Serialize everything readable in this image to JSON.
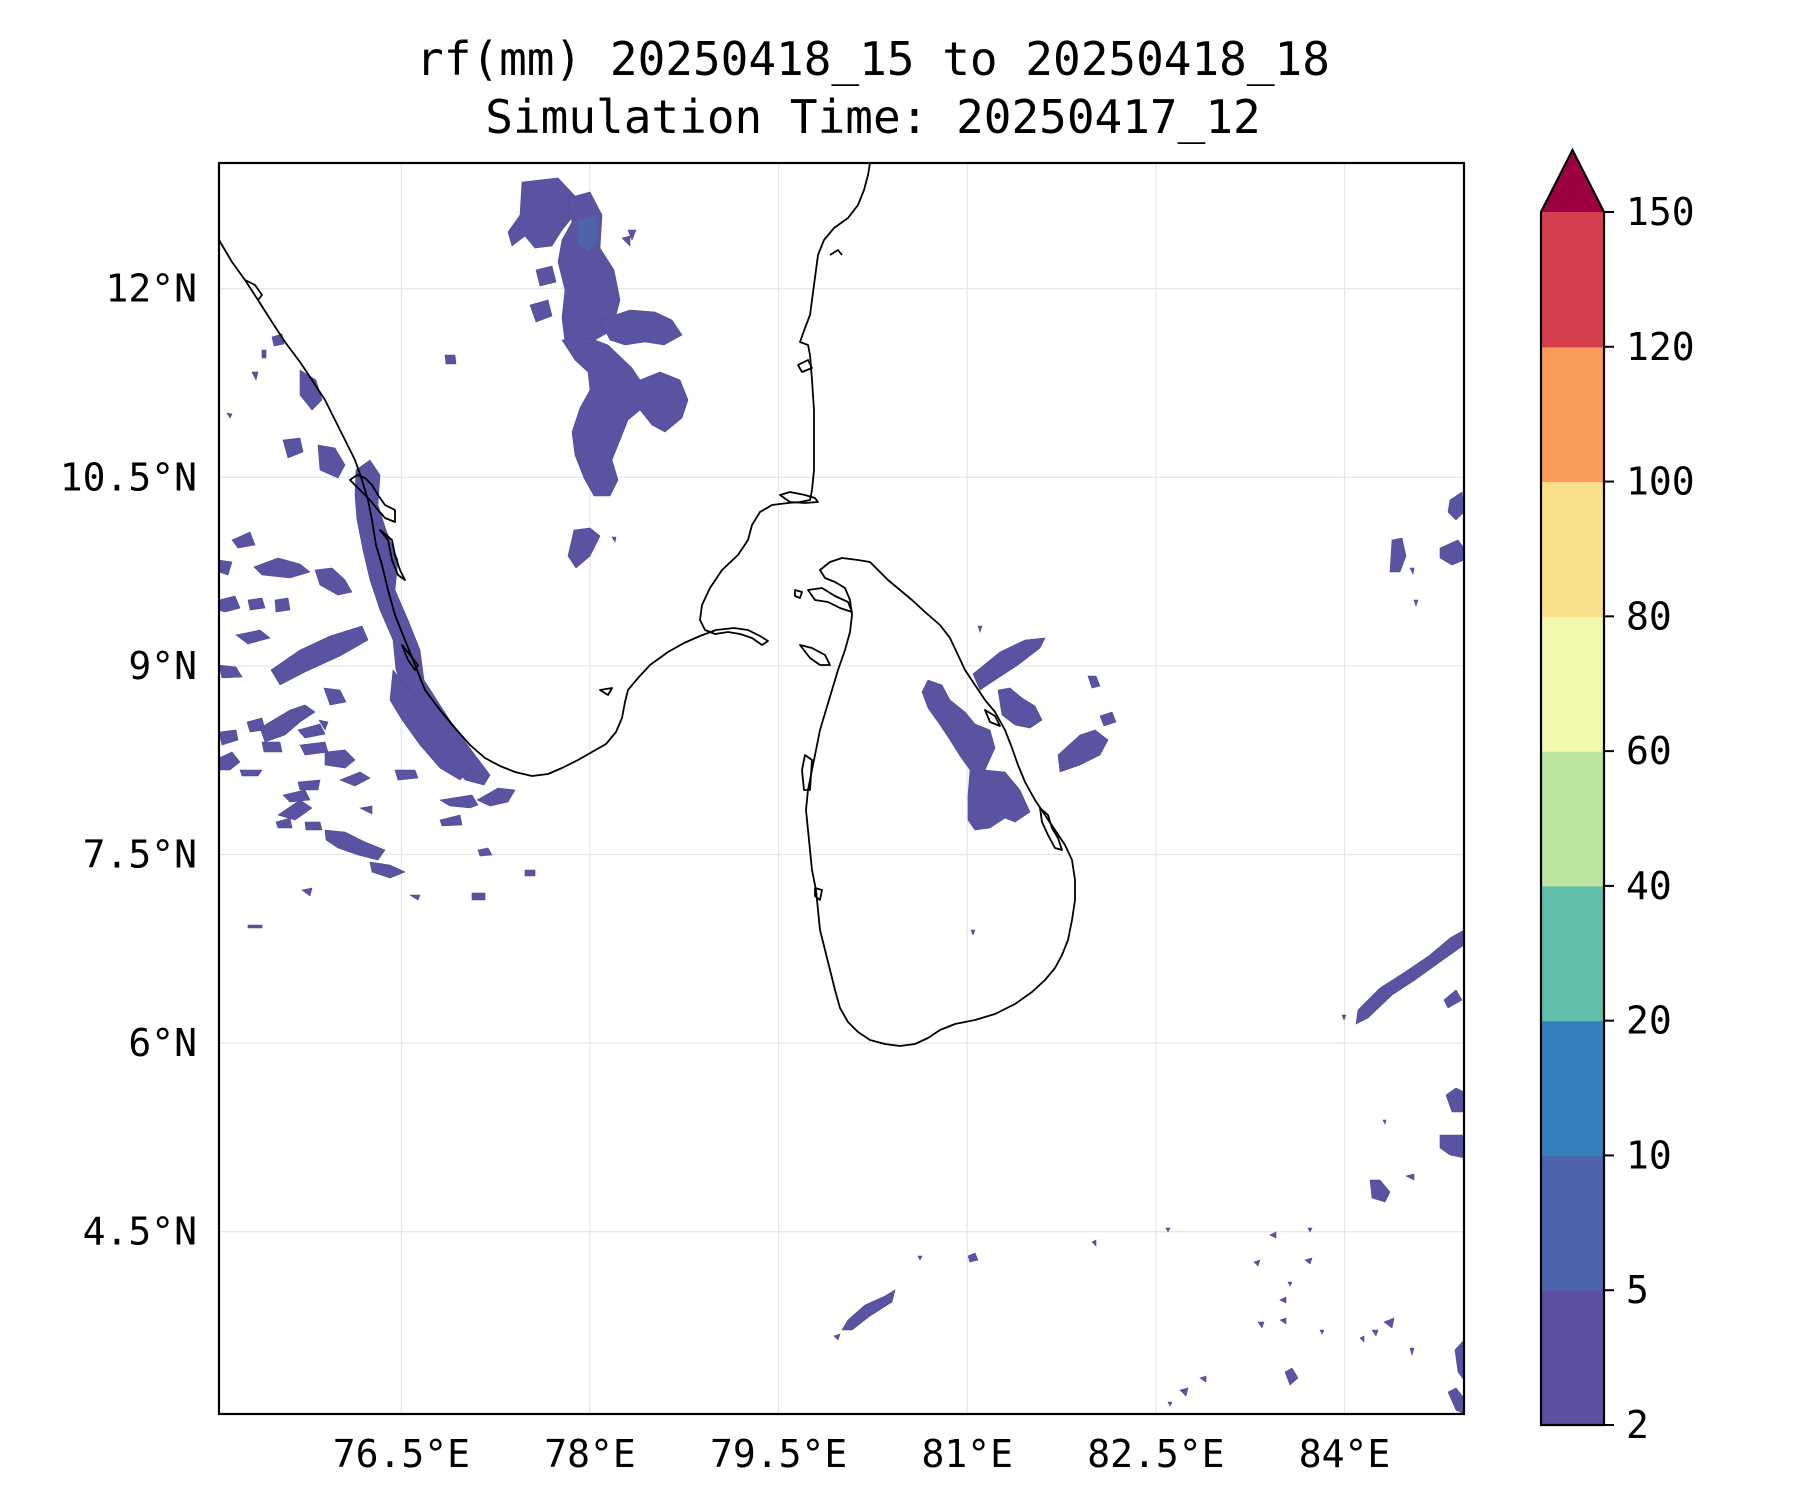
{
  "title": {
    "line1": "rf(mm) 20250418_15 to 20250418_18",
    "line2": "Simulation Time: 20250417_12"
  },
  "axes": {
    "x_ticks": [
      {
        "value": 76.5,
        "label": "76.5°E"
      },
      {
        "value": 78.0,
        "label": "78°E"
      },
      {
        "value": 79.5,
        "label": "79.5°E"
      },
      {
        "value": 81.0,
        "label": "81°E"
      },
      {
        "value": 82.5,
        "label": "82.5°E"
      },
      {
        "value": 84.0,
        "label": "84°E"
      }
    ],
    "y_ticks": [
      {
        "value": 12.0,
        "label": "12°N"
      },
      {
        "value": 10.5,
        "label": "10.5°N"
      },
      {
        "value": 9.0,
        "label": "9°N"
      },
      {
        "value": 7.5,
        "label": "7.5°N"
      },
      {
        "value": 6.0,
        "label": "6°N"
      },
      {
        "value": 4.5,
        "label": "4.5°N"
      }
    ],
    "lon_range": [
      75.05,
      84.95
    ],
    "lat_range": [
      3.05,
      13.0
    ],
    "grid": true
  },
  "colorbar": {
    "levels": [
      {
        "label": "2",
        "color": "#5e4fa2"
      },
      {
        "label": "5",
        "color": "#4b64ad"
      },
      {
        "label": "10",
        "color": "#3580bb"
      },
      {
        "label": "20",
        "color": "#62bdab"
      },
      {
        "label": "40",
        "color": "#bde4a0"
      },
      {
        "label": "60",
        "color": "#f2f9ae"
      },
      {
        "label": "80",
        "color": "#fbe08c"
      },
      {
        "label": "100",
        "color": "#f99b5a"
      },
      {
        "label": "120",
        "color": "#d53e4f"
      },
      {
        "label": "150",
        "color": "#9e0142"
      }
    ],
    "extend": "max"
  }
}
